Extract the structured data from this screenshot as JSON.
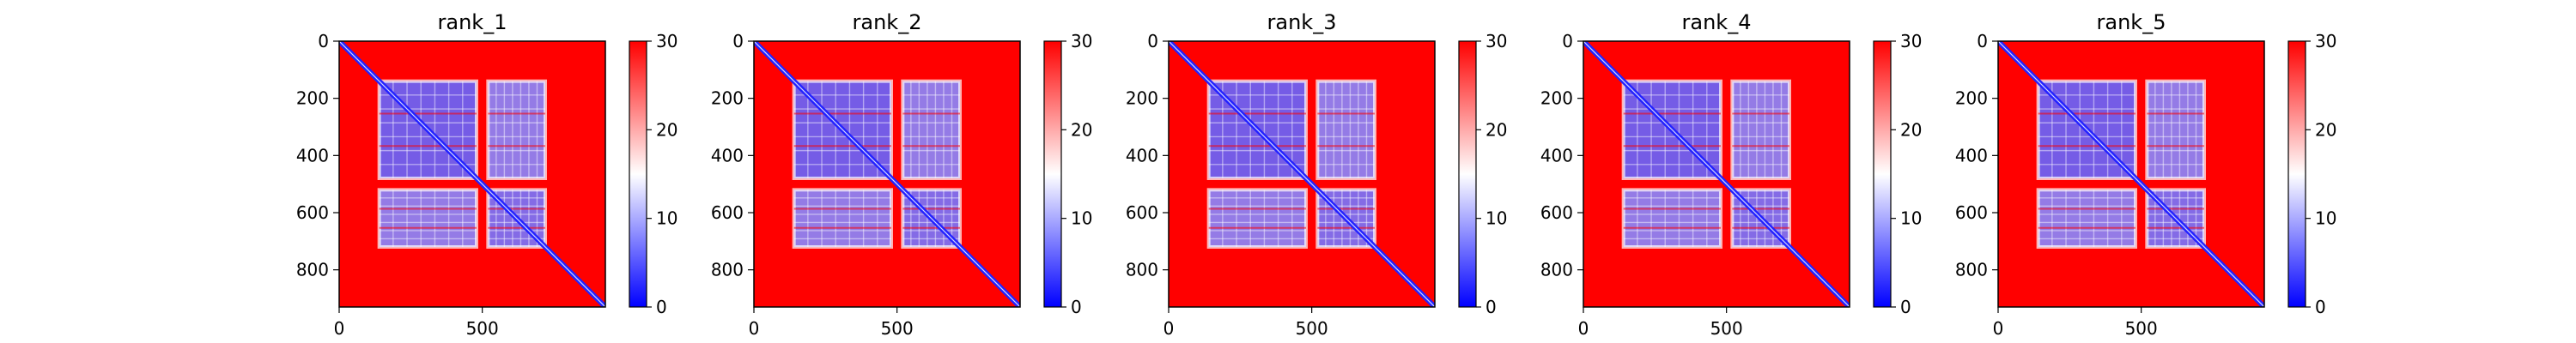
{
  "figure": {
    "background": "#ffffff",
    "colormap": [
      "#0000ff",
      "#ffffff",
      "#ff0000"
    ],
    "colormap_name": "bwr"
  },
  "chart_data": [
    {
      "type": "heatmap",
      "title": "rank_1",
      "xlim": [
        0,
        930
      ],
      "ylim": [
        930,
        0
      ],
      "xticks": [
        0,
        500
      ],
      "yticks": [
        0,
        200,
        400,
        600,
        800
      ],
      "colorbar": {
        "range": [
          0,
          30
        ],
        "ticks": [
          0,
          10,
          20,
          30
        ]
      },
      "grid": false,
      "blocks": [
        {
          "x": [
            140,
            480
          ],
          "y": [
            140,
            480
          ],
          "value": 6
        },
        {
          "x": [
            520,
            720
          ],
          "y": [
            520,
            720
          ],
          "value": 7
        },
        {
          "x": [
            140,
            480
          ],
          "y": [
            520,
            720
          ],
          "value": 8
        },
        {
          "x": [
            520,
            720
          ],
          "y": [
            140,
            480
          ],
          "value": 8
        }
      ],
      "diagonal_value": 2
    },
    {
      "type": "heatmap",
      "title": "rank_2",
      "xlim": [
        0,
        930
      ],
      "ylim": [
        930,
        0
      ],
      "xticks": [
        0,
        500
      ],
      "yticks": [
        0,
        200,
        400,
        600,
        800
      ],
      "colorbar": {
        "range": [
          0,
          30
        ],
        "ticks": [
          0,
          10,
          20,
          30
        ]
      },
      "grid": false,
      "blocks": [
        {
          "x": [
            140,
            480
          ],
          "y": [
            140,
            480
          ],
          "value": 6
        },
        {
          "x": [
            520,
            720
          ],
          "y": [
            520,
            720
          ],
          "value": 7
        },
        {
          "x": [
            140,
            480
          ],
          "y": [
            520,
            720
          ],
          "value": 8
        },
        {
          "x": [
            520,
            720
          ],
          "y": [
            140,
            480
          ],
          "value": 8
        }
      ],
      "diagonal_value": 2
    },
    {
      "type": "heatmap",
      "title": "rank_3",
      "xlim": [
        0,
        930
      ],
      "ylim": [
        930,
        0
      ],
      "xticks": [
        0,
        500
      ],
      "yticks": [
        0,
        200,
        400,
        600,
        800
      ],
      "colorbar": {
        "range": [
          0,
          30
        ],
        "ticks": [
          0,
          10,
          20,
          30
        ]
      },
      "grid": false,
      "blocks": [
        {
          "x": [
            140,
            480
          ],
          "y": [
            140,
            480
          ],
          "value": 6
        },
        {
          "x": [
            520,
            720
          ],
          "y": [
            520,
            720
          ],
          "value": 7
        },
        {
          "x": [
            140,
            480
          ],
          "y": [
            520,
            720
          ],
          "value": 8
        },
        {
          "x": [
            520,
            720
          ],
          "y": [
            140,
            480
          ],
          "value": 8
        }
      ],
      "diagonal_value": 2
    },
    {
      "type": "heatmap",
      "title": "rank_4",
      "xlim": [
        0,
        930
      ],
      "ylim": [
        930,
        0
      ],
      "xticks": [
        0,
        500
      ],
      "yticks": [
        0,
        200,
        400,
        600,
        800
      ],
      "colorbar": {
        "range": [
          0,
          30
        ],
        "ticks": [
          0,
          10,
          20,
          30
        ]
      },
      "grid": false,
      "blocks": [
        {
          "x": [
            140,
            480
          ],
          "y": [
            140,
            480
          ],
          "value": 6
        },
        {
          "x": [
            520,
            720
          ],
          "y": [
            520,
            720
          ],
          "value": 7
        },
        {
          "x": [
            140,
            480
          ],
          "y": [
            520,
            720
          ],
          "value": 8
        },
        {
          "x": [
            520,
            720
          ],
          "y": [
            140,
            480
          ],
          "value": 8
        }
      ],
      "diagonal_value": 2
    },
    {
      "type": "heatmap",
      "title": "rank_5",
      "xlim": [
        0,
        930
      ],
      "ylim": [
        930,
        0
      ],
      "xticks": [
        0,
        500
      ],
      "yticks": [
        0,
        200,
        400,
        600,
        800
      ],
      "colorbar": {
        "range": [
          0,
          30
        ],
        "ticks": [
          0,
          10,
          20,
          30
        ]
      },
      "grid": false,
      "blocks": [
        {
          "x": [
            140,
            480
          ],
          "y": [
            140,
            480
          ],
          "value": 6
        },
        {
          "x": [
            520,
            720
          ],
          "y": [
            520,
            720
          ],
          "value": 7
        },
        {
          "x": [
            140,
            480
          ],
          "y": [
            520,
            720
          ],
          "value": 8
        },
        {
          "x": [
            520,
            720
          ],
          "y": [
            140,
            480
          ],
          "value": 8
        }
      ],
      "diagonal_value": 2
    }
  ]
}
